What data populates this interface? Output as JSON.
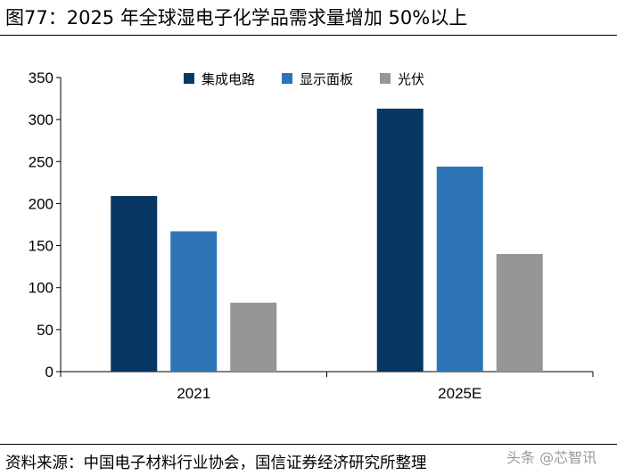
{
  "header": {
    "title": "图77：2025 年全球湿电子化学品需求量增加 50%以上"
  },
  "footer": {
    "source": "资料来源：中国电子材料行业协会，国信证券经济研究所整理",
    "watermark": "头条 @芯智讯"
  },
  "chart_data": {
    "type": "bar",
    "title": "",
    "xlabel": "",
    "ylabel": "",
    "categories": [
      "2021",
      "2025E"
    ],
    "series": [
      {
        "name": "集成电路",
        "values": [
          209,
          313
        ],
        "color": "#073763"
      },
      {
        "name": "显示面板",
        "values": [
          167,
          244
        ],
        "color": "#2e75b6"
      },
      {
        "name": "光伏",
        "values": [
          82,
          140
        ],
        "color": "#969696"
      }
    ],
    "ylim": [
      0,
      350
    ],
    "yticks": [
      0,
      50,
      100,
      150,
      200,
      250,
      300,
      350
    ],
    "grid": false,
    "legend": "top-center"
  }
}
